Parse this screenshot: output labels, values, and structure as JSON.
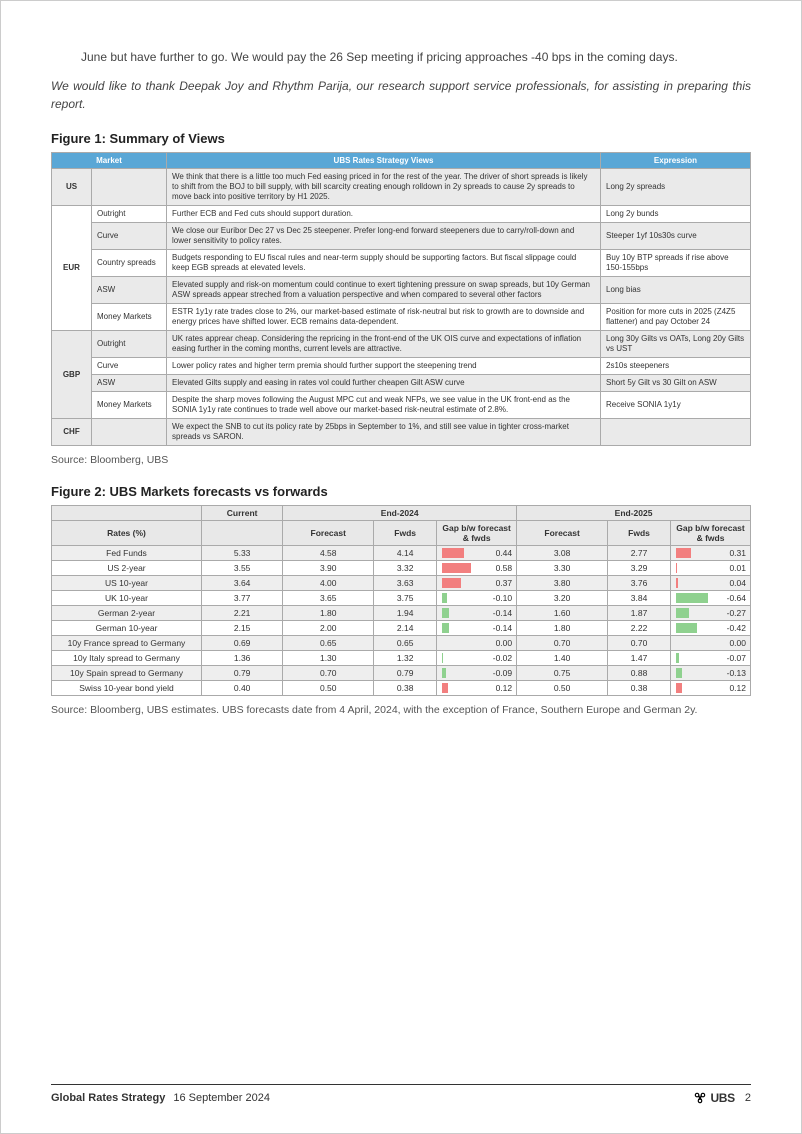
{
  "intro": {
    "line1": "June but have further to go. We would pay the 26 Sep meeting if pricing approaches -40 bps in the coming days.",
    "thanks": "We would like to thank Deepak Joy and Rhythm Parija, our research support service professionals, for assisting in preparing this report."
  },
  "figure1": {
    "title": "Figure 1: Summary of Views",
    "headers": {
      "market": "Market",
      "views": "UBS Rates Strategy Views",
      "expression": "Expression"
    },
    "rows": [
      {
        "cur": "US",
        "type": "",
        "view": "We think that there is a little too much Fed easing priced in for the rest of the year. The driver of short spreads is likely to shift from the BOJ to bill supply, with bill scarcity creating enough rolldown in 2y spreads to cause 2y spreads to move back into positive territory by H1 2025.",
        "expr": "Long 2y spreads",
        "rowspan": 1,
        "shade": "odd"
      },
      {
        "cur": "EUR",
        "type": "Outright",
        "view": "Further ECB and Fed cuts should support duration.",
        "expr": "Long 2y bunds",
        "rowspan": 5,
        "shade": ""
      },
      {
        "type": "Curve",
        "view": "We close our Euribor Dec 27 vs Dec 25 steepener. Prefer long-end forward steepeners due to carry/roll-down and lower sensitivity to policy rates.",
        "expr": "Steeper 1yf 10s30s curve",
        "shade": "odd"
      },
      {
        "type": "Country spreads",
        "view": "Budgets responding to EU fiscal rules and near-term supply should be supporting factors. But fiscal slippage could keep EGB spreads at elevated levels.",
        "expr": "Buy 10y BTP spreads if rise above 150-155bps",
        "shade": ""
      },
      {
        "type": "ASW",
        "view": "Elevated supply and risk-on momentum could continue to exert tightening pressure on swap spreads, but 10y German ASW spreads appear streched from a valuation perspective and when compared to several other factors",
        "expr": "Long bias",
        "shade": "odd"
      },
      {
        "type": "Money Markets",
        "view": "ESTR 1y1y rate trades close to 2%,  our market-based estimate of risk-neutral but risk to growth are to downside and energy prices have shifted lower. ECB remains data-dependent.",
        "expr": "Position for more cuts in 2025 (Z4Z5 flattener) and pay October 24",
        "shade": ""
      },
      {
        "cur": "GBP",
        "type": "Outright",
        "view": "UK rates apprear cheap. Considering the repricing in the front-end of the UK OIS curve and expectations of inflation easing further in the coming months, current levels are attractive.",
        "expr": "Long 30y Gilts vs OATs, Long 20y Gilts vs UST",
        "rowspan": 4,
        "shade": "odd"
      },
      {
        "type": "Curve",
        "view": "Lower policy rates and higher term premia should further support the steepening trend",
        "expr": "2s10s steepeners",
        "shade": ""
      },
      {
        "type": "ASW",
        "view": "Elevated Gilts supply and easing in rates vol could further cheapen Gilt ASW curve",
        "expr": "Short 5y Gilt vs 30 Gilt on ASW",
        "shade": "odd"
      },
      {
        "type": "Money Markets",
        "view": "Despite the sharp moves following the August MPC cut and weak NFPs, we see value in the UK front-end as the SONIA 1y1y rate continues to trade well above our market-based risk-neutral estimate of 2.8%.",
        "expr": "Receive SONIA 1y1y",
        "shade": ""
      },
      {
        "cur": "CHF",
        "type": "",
        "view": "We expect the SNB to cut its policy rate by 25bps in September to 1%, and still see value in tighter cross-market spreads vs SARON.",
        "expr": "",
        "rowspan": 1,
        "shade": "odd"
      }
    ],
    "source": "Source: Bloomberg, UBS"
  },
  "figure2": {
    "title": "Figure 2: UBS Markets forecasts vs forwards",
    "headers": {
      "blank": "",
      "current": "Current",
      "end2024": "End-2024",
      "end2025": "End-2025",
      "rates": "Rates (%)",
      "forecast": "Forecast",
      "fwds": "Fwds",
      "gap": "Gap b/w forecast & fwds"
    },
    "rows": [
      {
        "label": "Fed Funds",
        "cur": "5.33",
        "f24": "4.58",
        "w24": "4.14",
        "g24": 0.44,
        "f25": "3.08",
        "w25": "2.77",
        "g25": 0.31
      },
      {
        "label": "US 2-year",
        "cur": "3.55",
        "f24": "3.90",
        "w24": "3.32",
        "g24": 0.58,
        "f25": "3.30",
        "w25": "3.29",
        "g25": 0.01
      },
      {
        "label": "US 10-year",
        "cur": "3.64",
        "f24": "4.00",
        "w24": "3.63",
        "g24": 0.37,
        "f25": "3.80",
        "w25": "3.76",
        "g25": 0.04
      },
      {
        "label": "UK 10-year",
        "cur": "3.77",
        "f24": "3.65",
        "w24": "3.75",
        "g24": -0.1,
        "f25": "3.20",
        "w25": "3.84",
        "g25": -0.64
      },
      {
        "label": "German 2-year",
        "cur": "2.21",
        "f24": "1.80",
        "w24": "1.94",
        "g24": -0.14,
        "f25": "1.60",
        "w25": "1.87",
        "g25": -0.27
      },
      {
        "label": "German 10-year",
        "cur": "2.15",
        "f24": "2.00",
        "w24": "2.14",
        "g24": -0.14,
        "f25": "1.80",
        "w25": "2.22",
        "g25": -0.42
      },
      {
        "label": "10y France spread to Germany",
        "cur": "0.69",
        "f24": "0.65",
        "w24": "0.65",
        "g24": 0.0,
        "f25": "0.70",
        "w25": "0.70",
        "g25": 0.0
      },
      {
        "label": "10y Italy spread to Germany",
        "cur": "1.36",
        "f24": "1.30",
        "w24": "1.32",
        "g24": -0.02,
        "f25": "1.40",
        "w25": "1.47",
        "g25": -0.07
      },
      {
        "label": "10y Spain spread to Germany",
        "cur": "0.79",
        "f24": "0.70",
        "w24": "0.79",
        "g24": -0.09,
        "f25": "0.75",
        "w25": "0.88",
        "g25": -0.13
      },
      {
        "label": "Swiss 10-year bond yield",
        "cur": "0.40",
        "f24": "0.50",
        "w24": "0.38",
        "g24": 0.12,
        "f25": "0.50",
        "w25": "0.38",
        "g25": 0.12
      }
    ],
    "colors": {
      "pos": "#f27f7f",
      "neg": "#8fd18f"
    },
    "gap_scale": 0.7,
    "source": "Source: Bloomberg, UBS estimates. UBS forecasts date from 4 April, 2024, with the exception of France, Southern Europe and German 2y."
  },
  "footer": {
    "title": "Global Rates Strategy",
    "date": "16 September 2024",
    "brand": "UBS",
    "page": "2"
  }
}
